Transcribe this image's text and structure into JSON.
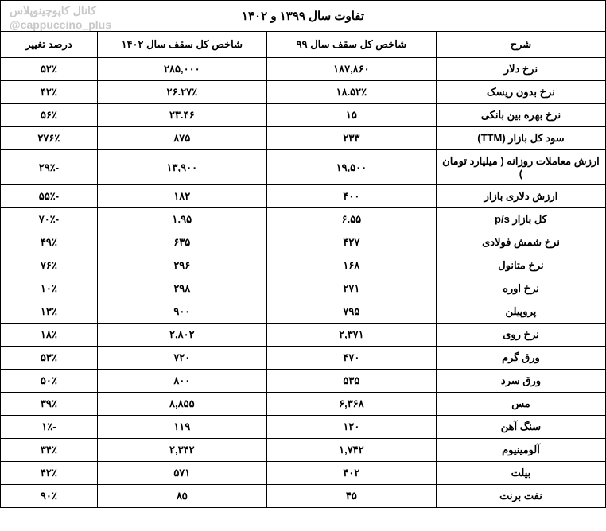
{
  "watermark": {
    "line1": "کانال کاپوچینوپلاس",
    "line2": "@cappuccino_plus"
  },
  "table": {
    "title": "تفاوت سال ۱۳۹۹ و ۱۴۰۲",
    "columns": {
      "desc": "شرح",
      "ceil99": "شاخص کل سقف سال ۹۹",
      "ceil1402": "شاخص کل سقف سال ۱۴۰۲",
      "pct": "درصد تغییر"
    },
    "rows": [
      {
        "desc": "نرخ دلار",
        "v99": "۱۸۷,۸۶۰",
        "v1402": "۲۸۵,۰۰۰",
        "pct": "۵۲٪"
      },
      {
        "desc": "نرخ بدون ریسک",
        "v99": "۱۸.۵۲٪",
        "v1402": "۲۶.۲۷٪",
        "pct": "۴۲٪"
      },
      {
        "desc": "نرخ بهره بین بانکی",
        "v99": "۱۵",
        "v1402": "۲۳.۴۶",
        "pct": "۵۶٪"
      },
      {
        "desc": "سود کل بازار (TTM)",
        "v99": "۲۳۳",
        "v1402": "۸۷۵",
        "pct": "۲۷۶٪"
      },
      {
        "desc": "ارزش معاملات روزانه ( میلیارد تومان )",
        "v99": "۱۹,۵۰۰",
        "v1402": "۱۳,۹۰۰",
        "pct": "-۲۹٪"
      },
      {
        "desc": "ارزش دلاری بازار",
        "v99": "۴۰۰",
        "v1402": "۱۸۲",
        "pct": "-۵۵٪"
      },
      {
        "desc": "کل بازار p/s",
        "v99": "۶.۵۵",
        "v1402": "۱.۹۵",
        "pct": "-۷۰٪"
      },
      {
        "desc": "نرخ شمش فولادی",
        "v99": "۴۲۷",
        "v1402": "۶۳۵",
        "pct": "۴۹٪"
      },
      {
        "desc": "نرخ متانول",
        "v99": "۱۶۸",
        "v1402": "۲۹۶",
        "pct": "۷۶٪"
      },
      {
        "desc": "نرخ اوره",
        "v99": "۲۷۱",
        "v1402": "۲۹۸",
        "pct": "۱۰٪"
      },
      {
        "desc": "پروپیلن",
        "v99": "۷۹۵",
        "v1402": "۹۰۰",
        "pct": "۱۳٪"
      },
      {
        "desc": "نرخ روی",
        "v99": "۲,۳۷۱",
        "v1402": "۲,۸۰۲",
        "pct": "۱۸٪"
      },
      {
        "desc": "ورق گرم",
        "v99": "۴۷۰",
        "v1402": "۷۲۰",
        "pct": "۵۳٪"
      },
      {
        "desc": "ورق سرد",
        "v99": "۵۳۵",
        "v1402": "۸۰۰",
        "pct": "۵۰٪"
      },
      {
        "desc": "مس",
        "v99": "۶,۳۶۸",
        "v1402": "۸,۸۵۵",
        "pct": "۳۹٪"
      },
      {
        "desc": "سنگ آهن",
        "v99": "۱۲۰",
        "v1402": "۱۱۹",
        "pct": "-۱٪"
      },
      {
        "desc": "آلومینیوم",
        "v99": "۱,۷۴۲",
        "v1402": "۲,۳۴۲",
        "pct": "۳۴٪"
      },
      {
        "desc": "بیلت",
        "v99": "۴۰۲",
        "v1402": "۵۷۱",
        "pct": "۴۲٪"
      },
      {
        "desc": "نفت برنت",
        "v99": "۴۵",
        "v1402": "۸۵",
        "pct": "۹۰٪"
      }
    ],
    "styling": {
      "border_color": "#000000",
      "background_color": "#ffffff",
      "text_color": "#000000",
      "watermark_color": "#c8c8c8",
      "font_family": "Tahoma",
      "header_fontsize": 15,
      "cell_fontsize": 13,
      "font_weight": "bold",
      "col_widths_pct": {
        "desc": 28,
        "v99": 28,
        "v1402": 28,
        "pct": 16
      }
    }
  }
}
